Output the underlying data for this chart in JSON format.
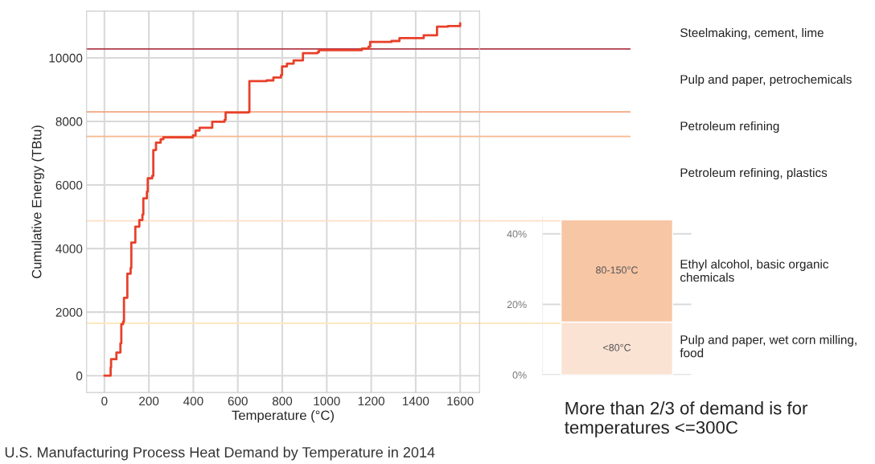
{
  "chart_data": [
    {
      "type": "step",
      "title": "U.S. Manufacturing Process Heat Demand by Temperature in 2014",
      "xlabel": "Temperature (°C)",
      "ylabel": "Cumulative Energy (TBtu)",
      "series": [
        {
          "color": "#e8402a",
          "x": [
            0,
            28,
            30,
            54,
            72,
            76,
            84,
            88,
            103,
            118,
            121,
            126,
            139,
            157,
            171,
            175,
            191,
            195,
            215,
            220,
            232,
            253,
            265,
            398,
            410,
            428,
            483,
            485,
            540,
            545,
            649,
            652,
            730,
            760,
            794,
            799,
            821,
            851,
            893,
            959,
            965,
            1092,
            1158,
            1188,
            1195,
            1291,
            1327,
            1436,
            1496,
            1545,
            1600
          ],
          "values": [
            0,
            260,
            520,
            730,
            1020,
            1620,
            1700,
            2450,
            3210,
            3390,
            4190,
            4190,
            4690,
            4900,
            5070,
            5580,
            5790,
            6210,
            6290,
            7100,
            7330,
            7440,
            7500,
            7560,
            7710,
            7800,
            7800,
            7990,
            8050,
            8280,
            8300,
            9270,
            9290,
            9380,
            9460,
            9730,
            9820,
            9920,
            10150,
            10180,
            10240,
            10240,
            10290,
            10350,
            10500,
            10530,
            10620,
            10710,
            10980,
            11000,
            11090
          ]
        }
      ],
      "xlim": [
        -80,
        1687
      ],
      "ylim": [
        -530,
        11470
      ],
      "xticks": [
        0,
        200,
        400,
        600,
        800,
        1000,
        1200,
        1400,
        1600
      ],
      "yticks": [
        0,
        2000,
        4000,
        6000,
        8000,
        10000
      ],
      "grid": true,
      "ref_lines": [
        {
          "axis": "y",
          "value": 10280,
          "color": "#b03a48"
        },
        {
          "axis": "y",
          "value": 8300,
          "color": "#f4a582"
        },
        {
          "axis": "y",
          "value": 7530,
          "color": "#f5b88e"
        },
        {
          "axis": "y",
          "value": 4870,
          "color": "#fde0c5"
        },
        {
          "axis": "y",
          "value": 1650,
          "color": "#fde8c0"
        }
      ],
      "annotations": [
        "Steelmaking, cement, lime",
        "Pulp and paper, petrochemicals",
        "Petroleum refining",
        "Petroleum refining, plastics",
        "More than 2/3 of demand is for temperatures <=300C"
      ]
    },
    {
      "type": "bar",
      "stacked": true,
      "categories": [
        null
      ],
      "series": [
        {
          "name": "<80°C",
          "color": "#fbe3d4",
          "values": [
            15
          ]
        },
        {
          "name": "80-150°C",
          "color": "#f7c6a5",
          "values": [
            29
          ]
        }
      ],
      "ylim": [
        0,
        45
      ],
      "yticks": [
        {
          "value": 0,
          "label": "0%"
        },
        {
          "value": 20,
          "label": "20%"
        },
        {
          "value": 40,
          "label": "40%"
        }
      ],
      "grid": "y",
      "tick_labels": "y",
      "annotations": [
        "Ethyl alcohol, basic organic chemicals",
        "Pulp and paper, wet corn milling, food"
      ]
    }
  ]
}
